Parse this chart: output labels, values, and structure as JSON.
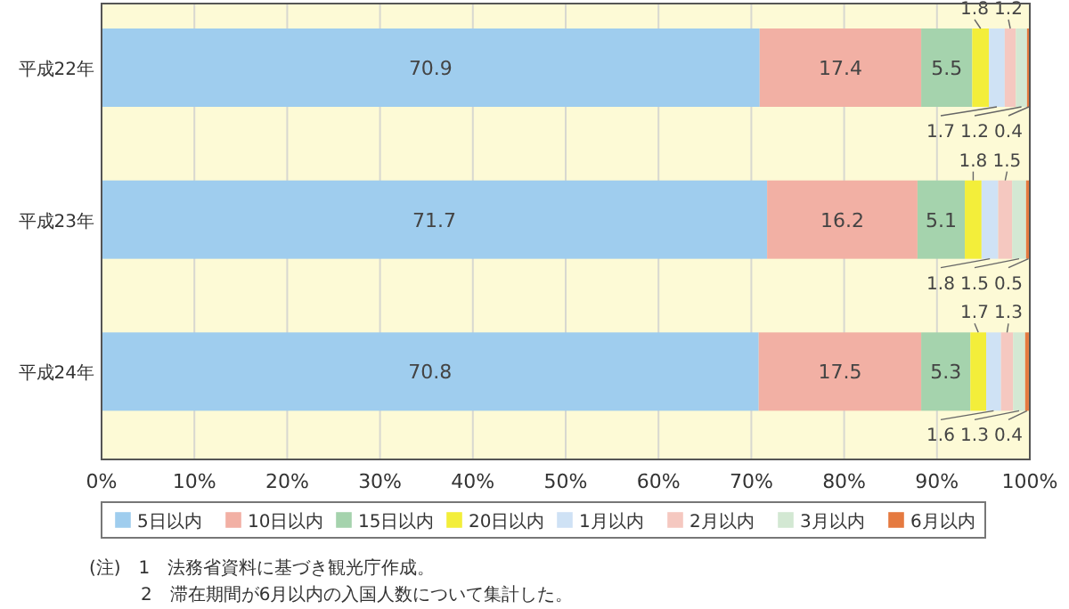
{
  "chart_data": {
    "type": "bar",
    "orientation": "horizontal",
    "stacked": true,
    "categories": [
      "平成22年",
      "平成23年",
      "平成24年"
    ],
    "series": [
      {
        "name": "5日以内",
        "color": "#9fcdee",
        "values": [
          70.9,
          71.7,
          70.8
        ]
      },
      {
        "name": "10日以内",
        "color": "#f2b0a4",
        "values": [
          17.4,
          16.2,
          17.5
        ]
      },
      {
        "name": "15日以内",
        "color": "#a5d3ad",
        "values": [
          5.5,
          5.1,
          5.3
        ]
      },
      {
        "name": "20日以内",
        "color": "#f3ee3a",
        "values": [
          1.8,
          1.8,
          1.7
        ]
      },
      {
        "name": "1月以内",
        "color": "#cfe2f5",
        "values": [
          1.7,
          1.8,
          1.6
        ]
      },
      {
        "name": "2月以内",
        "color": "#f5c8c0",
        "values": [
          1.2,
          1.5,
          1.3
        ]
      },
      {
        "name": "3月以内",
        "color": "#d3e8d3",
        "values": [
          1.2,
          1.5,
          1.3
        ]
      },
      {
        "name": "6月以内",
        "color": "#e57a40",
        "values": [
          0.4,
          0.5,
          0.4
        ]
      }
    ],
    "xlim": [
      0,
      100
    ],
    "xticks": [
      {
        "value": 0,
        "label": "0%"
      },
      {
        "value": 10,
        "label": "10%"
      },
      {
        "value": 20,
        "label": "20%"
      },
      {
        "value": 30,
        "label": "30%"
      },
      {
        "value": 40,
        "label": "40%"
      },
      {
        "value": 50,
        "label": "50%"
      },
      {
        "value": 60,
        "label": "60%"
      },
      {
        "value": 70,
        "label": "70%"
      },
      {
        "value": 80,
        "label": "80%"
      },
      {
        "value": 90,
        "label": "90%"
      },
      {
        "value": 100,
        "label": "100%"
      }
    ],
    "grid": "x",
    "legend": "bottom",
    "data_labels": true,
    "annotations": [
      "(注)　1　法務省資料に基づき観光庁作成。",
      "2　滞在期間が6月以内の入国人数について集計した。"
    ]
  }
}
